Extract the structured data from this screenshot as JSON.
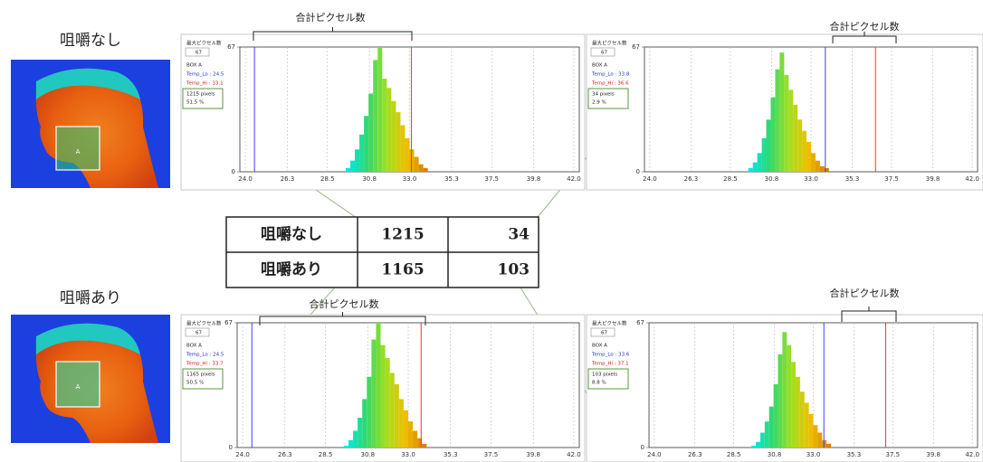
{
  "rows": [
    {
      "label": "咀嚼なし",
      "box_letter": "A",
      "panels": [
        {
          "max_label": "最大ピクセル数",
          "box": "BOX A",
          "temp_lo": "Temp_Lo : 24.5",
          "temp_hi": "Temp_Hi : 33.1",
          "pixels": "1215 pixels",
          "percent": "51.5 %",
          "bracket_label": "合計ピクセル数",
          "chart": {
            "type": "histogram",
            "bins": [
              29.5,
              29.75,
              30,
              30.25,
              30.5,
              30.75,
              31,
              31.25,
              31.5,
              31.75,
              32,
              32.25,
              32.5,
              32.75,
              33,
              33.25,
              33.5,
              33.75,
              34
            ],
            "values": [
              2,
              6,
              12,
              20,
              30,
              42,
              60,
              67,
              50,
              45,
              38,
              32,
              25,
              18,
              12,
              8,
              4,
              2
            ],
            "colormap": [
              "#00e8e8",
              "#30d870",
              "#a0e020",
              "#f0c000",
              "#d88000"
            ],
            "xlim": [
              23.7,
              42.3
            ],
            "xticks": [
              {
                "value": 24,
                "label": "24.0"
              },
              {
                "value": 26.3,
                "label": "26.3"
              },
              {
                "value": 28.5,
                "label": "28.5"
              },
              {
                "value": 30.8,
                "label": "30.8"
              },
              {
                "value": 33,
                "label": "33.0"
              },
              {
                "value": 35.3,
                "label": "35.3"
              },
              {
                "value": 37.5,
                "label": "37.5"
              },
              {
                "value": 39.8,
                "label": "39.8"
              },
              {
                "value": 42,
                "label": "42.0"
              }
            ],
            "ylim": [
              0,
              67
            ],
            "yticks": [
              0,
              67
            ],
            "markers": [
              {
                "value": 24.5,
                "color": "#4040ff"
              },
              {
                "value": 33.1,
                "color": "#ff3030"
              }
            ]
          }
        },
        {
          "max_label": "最大ピクセル数",
          "box": "BOX A",
          "temp_lo": "Temp_Lo : 33.8",
          "temp_hi": "Temp_Hi : 36.6",
          "pixels": "34 pixels",
          "percent": "2.9 %",
          "bracket_label": "合計ピクセル数",
          "chart": {
            "type": "histogram",
            "bins": [
              29.5,
              29.75,
              30,
              30.25,
              30.5,
              30.75,
              31,
              31.25,
              31.5,
              31.75,
              32,
              32.25,
              32.5,
              32.75,
              33,
              33.25,
              33.5,
              33.75,
              34
            ],
            "values": [
              2,
              5,
              10,
              18,
              28,
              40,
              55,
              64,
              52,
              44,
              36,
              28,
              22,
              16,
              10,
              6,
              3,
              2
            ],
            "colormap": [
              "#00e8e8",
              "#30d870",
              "#a0e020",
              "#f0c000",
              "#d88000"
            ],
            "xlim": [
              23.7,
              42.3
            ],
            "xticks": [
              {
                "value": 24,
                "label": "24.0"
              },
              {
                "value": 26.3,
                "label": "26.3"
              },
              {
                "value": 28.5,
                "label": "28.5"
              },
              {
                "value": 30.8,
                "label": "30.8"
              },
              {
                "value": 33,
                "label": "33.0"
              },
              {
                "value": 35.3,
                "label": "35.3"
              },
              {
                "value": 37.5,
                "label": "37.5"
              },
              {
                "value": 39.8,
                "label": "39.8"
              },
              {
                "value": 42,
                "label": "42.0"
              }
            ],
            "ylim": [
              0,
              67
            ],
            "yticks": [
              0,
              67
            ],
            "markers": [
              {
                "value": 33.8,
                "color": "#4040ff"
              },
              {
                "value": 36.6,
                "color": "#ff3030"
              }
            ]
          }
        }
      ]
    },
    {
      "label": "咀嚼あり",
      "box_letter": "A",
      "panels": [
        {
          "max_label": "最大ピクセル数",
          "box": "BOX A",
          "temp_lo": "Temp_Lo : 24.5",
          "temp_hi": "Temp_Hi : 33.7",
          "pixels": "1165 pixels",
          "percent": "50.5 %",
          "bracket_label": "合計ピクセル数",
          "chart": {
            "type": "histogram",
            "bins": [
              29.5,
              29.75,
              30,
              30.25,
              30.5,
              30.75,
              31,
              31.25,
              31.5,
              31.75,
              32,
              32.25,
              32.5,
              32.75,
              33,
              33.25,
              33.5,
              33.75,
              34
            ],
            "values": [
              1,
              4,
              9,
              16,
              26,
              38,
              58,
              67,
              55,
              48,
              40,
              34,
              26,
              20,
              14,
              9,
              5,
              2
            ],
            "colormap": [
              "#00e8e8",
              "#30d870",
              "#a0e020",
              "#f0c000",
              "#d88000"
            ],
            "xlim": [
              23.7,
              42.3
            ],
            "xticks": [
              {
                "value": 24,
                "label": "24.0"
              },
              {
                "value": 26.3,
                "label": "26.3"
              },
              {
                "value": 28.5,
                "label": "28.5"
              },
              {
                "value": 30.8,
                "label": "30.8"
              },
              {
                "value": 33,
                "label": "33.0"
              },
              {
                "value": 35.3,
                "label": "35.3"
              },
              {
                "value": 37.5,
                "label": "37.5"
              },
              {
                "value": 39.8,
                "label": "39.8"
              },
              {
                "value": 42,
                "label": "42.0"
              }
            ],
            "ylim": [
              0,
              67
            ],
            "yticks": [
              0,
              67
            ],
            "markers": [
              {
                "value": 24.5,
                "color": "#4040ff"
              },
              {
                "value": 33.7,
                "color": "#ff3030"
              }
            ]
          }
        },
        {
          "max_label": "最大ピクセル数",
          "box": "BOX A",
          "temp_lo": "Temp_Lo : 33.6",
          "temp_hi": "Temp_Hi : 37.1",
          "pixels": "103 pixels",
          "percent": "8.8 %",
          "bracket_label": "合計ピクセル数",
          "chart": {
            "type": "histogram",
            "bins": [
              29.5,
              29.75,
              30,
              30.25,
              30.5,
              30.75,
              31,
              31.25,
              31.5,
              31.75,
              32,
              32.25,
              32.5,
              32.75,
              33,
              33.25,
              33.5,
              33.75,
              34
            ],
            "values": [
              1,
              3,
              8,
              14,
              22,
              34,
              50,
              62,
              55,
              46,
              38,
              30,
              24,
              18,
              12,
              8,
              4,
              2
            ],
            "colormap": [
              "#00e8e8",
              "#30d870",
              "#a0e020",
              "#f0c000",
              "#d88000"
            ],
            "xlim": [
              23.7,
              42.3
            ],
            "xticks": [
              {
                "value": 24,
                "label": "24.0"
              },
              {
                "value": 26.3,
                "label": "26.3"
              },
              {
                "value": 28.5,
                "label": "28.5"
              },
              {
                "value": 30.8,
                "label": "30.8"
              },
              {
                "value": 33,
                "label": "33.0"
              },
              {
                "value": 35.3,
                "label": "35.3"
              },
              {
                "value": 37.5,
                "label": "37.5"
              },
              {
                "value": 39.8,
                "label": "39.8"
              },
              {
                "value": 42,
                "label": "42.0"
              }
            ],
            "ylim": [
              0,
              67
            ],
            "yticks": [
              0,
              67
            ],
            "markers": [
              {
                "value": 33.6,
                "color": "#4040ff"
              },
              {
                "value": 37.1,
                "color": "#ff3030"
              }
            ]
          }
        }
      ]
    }
  ],
  "table": {
    "rows": [
      [
        "咀嚼なし",
        "1215",
        "34"
      ],
      [
        "咀嚼あり",
        "1165",
        "103"
      ]
    ]
  }
}
